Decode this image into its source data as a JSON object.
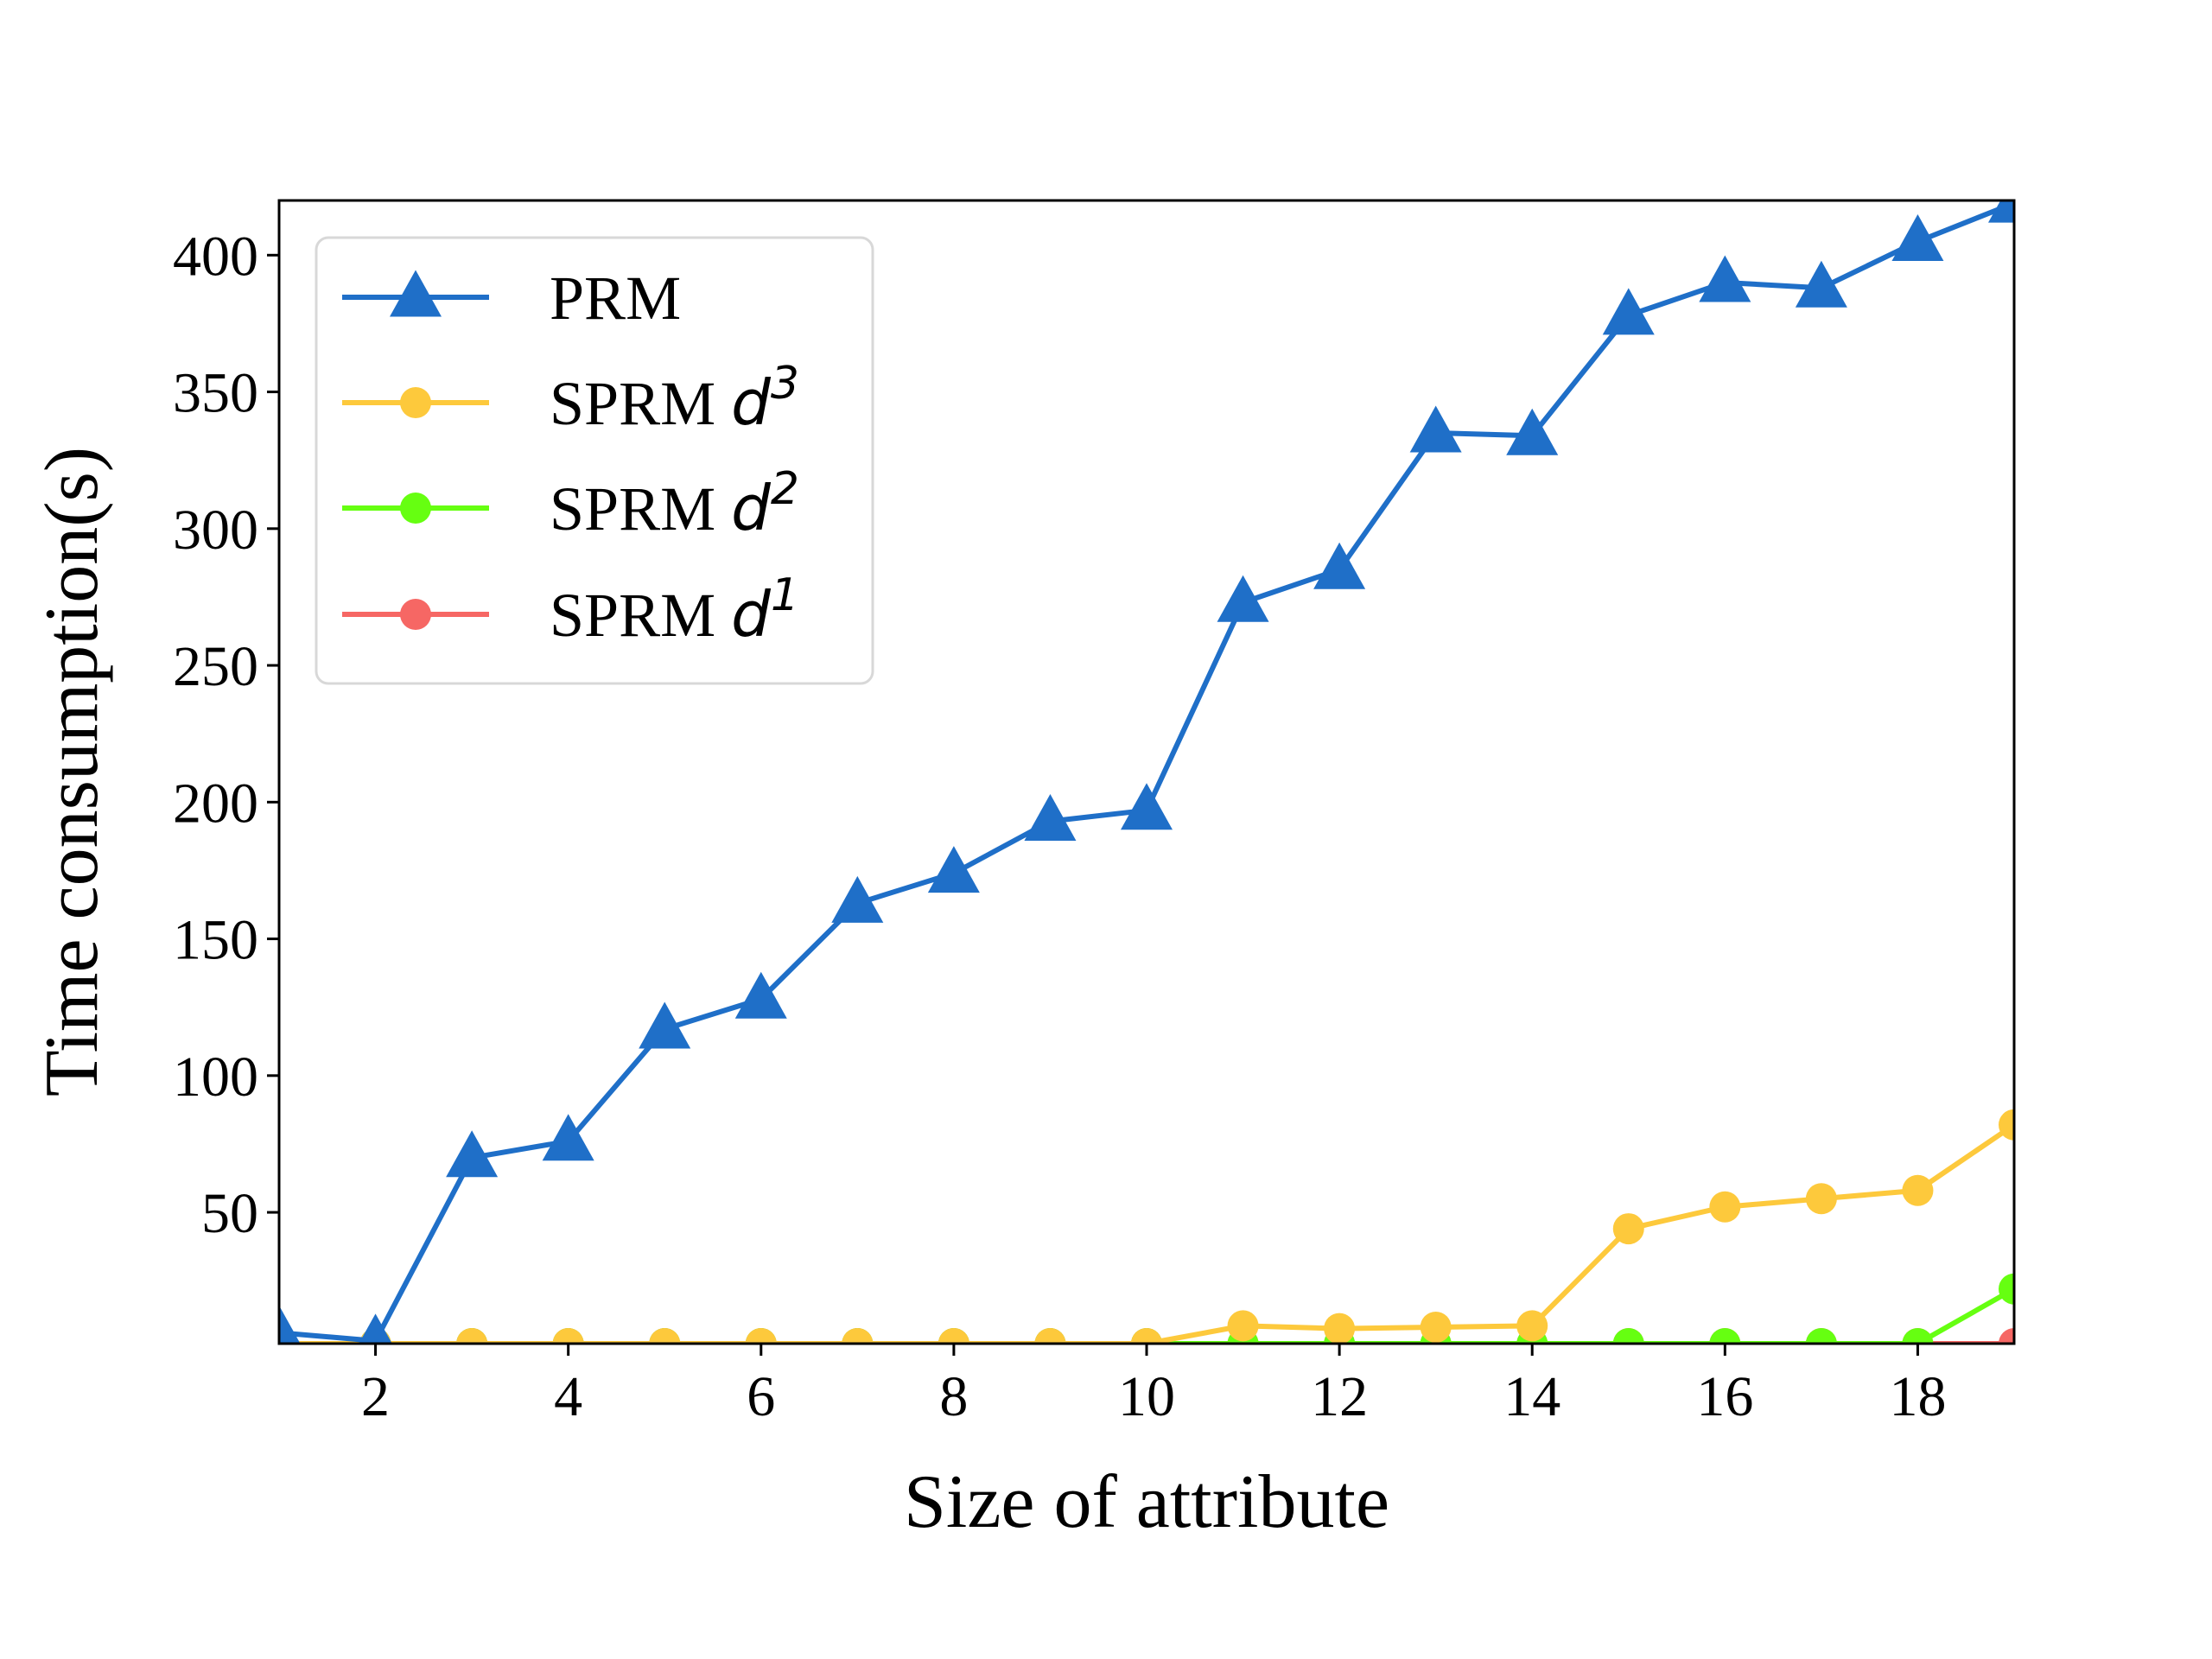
{
  "chart_data": {
    "type": "line",
    "xlabel": "Size of attribute",
    "ylabel": "Time consumption(s)",
    "xlim": [
      1,
      19
    ],
    "ylim": [
      2,
      420
    ],
    "xticks": [
      2,
      4,
      6,
      8,
      10,
      12,
      14,
      16,
      18
    ],
    "yticks": [
      50,
      100,
      150,
      200,
      250,
      300,
      350,
      400
    ],
    "grid": false,
    "legend_position": "top-left",
    "x": [
      1,
      2,
      3,
      4,
      5,
      6,
      7,
      8,
      9,
      10,
      11,
      12,
      13,
      14,
      15,
      16,
      17,
      18,
      19
    ],
    "series": [
      {
        "name": "PRM",
        "name_var": "",
        "name_sup": "",
        "color": "#1f6fc8",
        "marker": "triangle",
        "values": [
          6,
          3,
          70,
          76,
          117,
          128,
          163,
          174,
          193,
          197,
          273,
          285,
          335,
          334,
          378,
          390,
          388,
          405,
          419
        ]
      },
      {
        "name": "SPRM ",
        "name_var": "d",
        "name_sup": "3",
        "color": "#fdc93c",
        "marker": "circle",
        "values": [
          2,
          2,
          2,
          2,
          2,
          2,
          2,
          2,
          2,
          2,
          8.5,
          7.5,
          8,
          8.5,
          44,
          52,
          55,
          58,
          82
        ]
      },
      {
        "name": "SPRM ",
        "name_var": "d",
        "name_sup": "2",
        "color": "#66ff11",
        "marker": "circle",
        "values": [
          2,
          2,
          2,
          2,
          2,
          2,
          2,
          2,
          2,
          2,
          2,
          2,
          2,
          2,
          2,
          2,
          2,
          2,
          22
        ]
      },
      {
        "name": "SPRM ",
        "name_var": "d",
        "name_sup": "1",
        "color": "#f66764",
        "marker": "circle",
        "values": [
          2,
          2,
          2,
          2,
          2,
          2,
          2,
          2,
          2,
          2,
          2,
          2,
          2,
          2,
          2,
          2,
          2,
          2,
          2
        ]
      }
    ]
  }
}
